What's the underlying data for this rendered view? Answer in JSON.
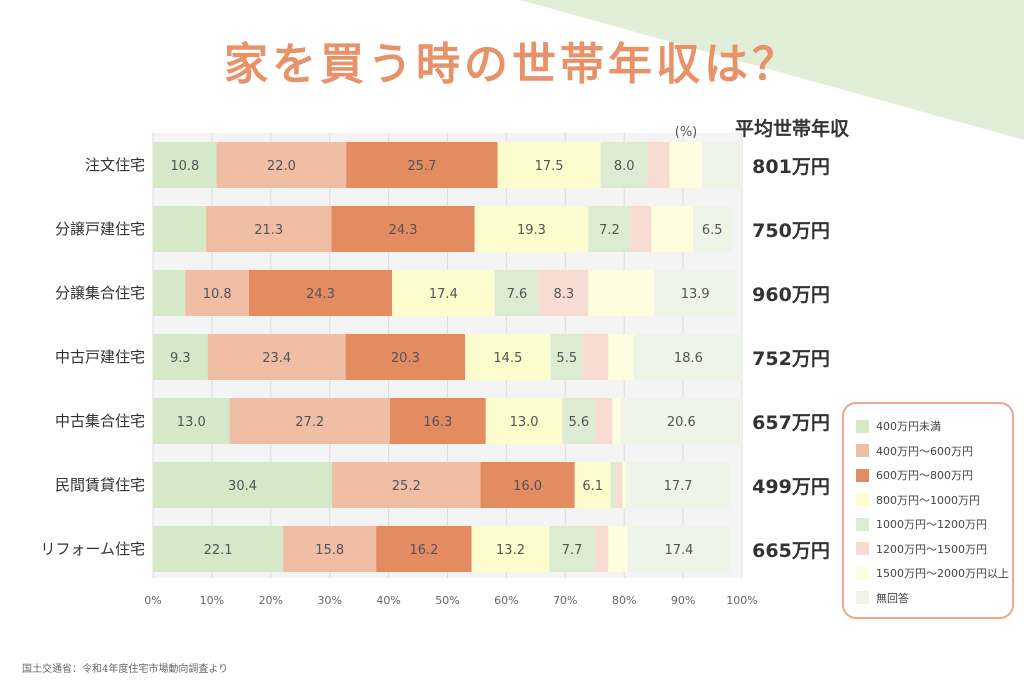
{
  "title": "家を買う時の世帯年収は？",
  "source": "国土交通省：令和4年度住宅市場動向調査より",
  "colors": {
    "background_shape": "#e2efd8",
    "title": "#e8926a",
    "legend_border": "#e8a98a"
  },
  "chart_data": {
    "type": "bar",
    "orientation": "horizontal",
    "stacked": true,
    "unit_label": "(%)",
    "avg_header": "平均世帯年収",
    "xlim": [
      0,
      100
    ],
    "x_ticks": [
      "0%",
      "10%",
      "20%",
      "30%",
      "40%",
      "50%",
      "60%",
      "70%",
      "80%",
      "90%",
      "100%"
    ],
    "grid": true,
    "legend_position": "bottom-right",
    "categories": [
      "注文住宅",
      "分譲戸建住宅",
      "分譲集合住宅",
      "中古戸建住宅",
      "中古集合住宅",
      "民間賃貸住宅",
      "リフォーム住宅"
    ],
    "averages": [
      "801万円",
      "750万円",
      "960万円",
      "752万円",
      "657万円",
      "499万円",
      "665万円"
    ],
    "series": [
      {
        "name": "400万円未満",
        "color": "#d5e8c8",
        "values": [
          10.8,
          9.0,
          5.5,
          9.3,
          13.0,
          30.4,
          22.1
        ],
        "labels": [
          "10.8",
          "",
          "",
          "9.3",
          "13.0",
          "30.4",
          "22.1"
        ]
      },
      {
        "name": "400万円～600万円",
        "color": "#efbea4",
        "values": [
          22.0,
          21.3,
          10.8,
          23.4,
          27.2,
          25.2,
          15.8
        ],
        "labels": [
          "22.0",
          "21.3",
          "10.8",
          "23.4",
          "27.2",
          "25.2",
          "15.8"
        ]
      },
      {
        "name": "600万円～800万円",
        "color": "#e38b61",
        "values": [
          25.7,
          24.3,
          24.3,
          20.3,
          16.3,
          16.0,
          16.2
        ],
        "labels": [
          "25.7",
          "24.3",
          "24.3",
          "20.3",
          "16.3",
          "16.0",
          "16.2"
        ]
      },
      {
        "name": "800万円～1000万円",
        "color": "#fdfccf",
        "values": [
          17.5,
          19.3,
          17.4,
          14.5,
          13.0,
          6.1,
          13.2
        ],
        "labels": [
          "17.5",
          "19.3",
          "17.4",
          "14.5",
          "13.0",
          "6.1",
          "13.2"
        ]
      },
      {
        "name": "1000万円～1200万円",
        "color": "#dcebd2",
        "values": [
          8.0,
          7.2,
          7.6,
          5.5,
          5.6,
          1.0,
          7.7
        ],
        "labels": [
          "8.0",
          "7.2",
          "7.6",
          "5.5",
          "5.6",
          "",
          "7.7"
        ]
      },
      {
        "name": "1200万円～1500万円",
        "color": "#f8dcd3",
        "values": [
          3.7,
          3.5,
          8.3,
          4.3,
          2.9,
          1.0,
          2.3
        ],
        "labels": [
          "",
          "",
          "8.3",
          "",
          "",
          "",
          ""
        ]
      },
      {
        "name": "1500万円～2000万円以上",
        "color": "#fdfde0",
        "values": [
          5.5,
          7.1,
          11.2,
          4.3,
          1.4,
          0.6,
          3.3
        ],
        "labels": [
          "",
          "",
          "",
          "",
          "",
          "",
          ""
        ]
      },
      {
        "name": "無回答",
        "color": "#eef4e8",
        "values": [
          6.8,
          6.5,
          13.9,
          18.6,
          20.6,
          17.7,
          17.4
        ],
        "labels": [
          "",
          "6.5",
          "13.9",
          "18.6",
          "20.6",
          "17.7",
          "17.4"
        ]
      }
    ]
  }
}
